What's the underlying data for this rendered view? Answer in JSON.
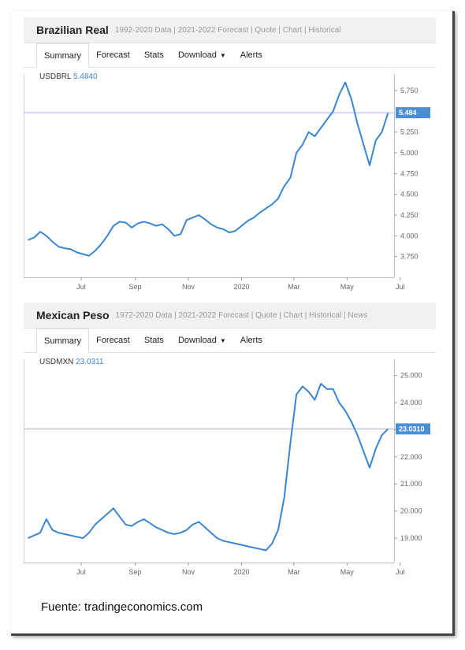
{
  "panels": [
    {
      "title": "Brazilian Real",
      "subtitle": "1992-2020 Data | 2021-2022 Forecast | Quote | Chart | Historical",
      "tabs": [
        "Summary",
        "Forecast",
        "Stats",
        "Download",
        "Alerts"
      ],
      "symbol_code": "USDBRL",
      "symbol_value": "5.4840",
      "current_label": "5.484"
    },
    {
      "title": "Mexican Peso",
      "subtitle": "1972-2020 Data | 2021-2022 Forecast | Quote | Chart | Historical | News",
      "tabs": [
        "Summary",
        "Forecast",
        "Stats",
        "Download",
        "Alerts"
      ],
      "symbol_code": "USDMXN",
      "symbol_value": "23.0311",
      "current_label": "23.0310"
    }
  ],
  "source": "Fuente: tradingeconomics.com",
  "colors": {
    "line": "#3a86d0",
    "ref_line": "#b8b6ee",
    "price_badge": "#4a8fd6"
  },
  "chart_data": [
    {
      "type": "line",
      "title": "",
      "series": [
        {
          "name": "USDBRL"
        }
      ],
      "x_ticks": [
        "Jul",
        "Sep",
        "Nov",
        "2020",
        "Mar",
        "May",
        "Jul"
      ],
      "y_ticks": [
        "3.750",
        "4.000",
        "4.250",
        "4.500",
        "4.750",
        "5.000",
        "5.250",
        "5.750"
      ],
      "ylim": [
        3.5,
        5.95
      ],
      "current": 5.484,
      "x": [
        "2019-05-15",
        "2019-05-22",
        "2019-05-29",
        "2019-06-05",
        "2019-06-12",
        "2019-06-19",
        "2019-06-26",
        "2019-07-03",
        "2019-07-10",
        "2019-07-17",
        "2019-07-24",
        "2019-07-31",
        "2019-08-07",
        "2019-08-14",
        "2019-08-21",
        "2019-08-28",
        "2019-09-04",
        "2019-09-11",
        "2019-09-18",
        "2019-09-25",
        "2019-10-02",
        "2019-10-09",
        "2019-10-16",
        "2019-10-23",
        "2019-10-30",
        "2019-11-06",
        "2019-11-13",
        "2019-11-20",
        "2019-11-27",
        "2019-12-04",
        "2019-12-11",
        "2019-12-18",
        "2019-12-25",
        "2020-01-01",
        "2020-01-08",
        "2020-01-15",
        "2020-01-22",
        "2020-01-29",
        "2020-02-05",
        "2020-02-12",
        "2020-02-19",
        "2020-02-26",
        "2020-03-04",
        "2020-03-11",
        "2020-03-18",
        "2020-03-25",
        "2020-04-01",
        "2020-04-08",
        "2020-04-15",
        "2020-04-22",
        "2020-04-29",
        "2020-05-06",
        "2020-05-13",
        "2020-05-20",
        "2020-05-27",
        "2020-06-03",
        "2020-06-10",
        "2020-06-17",
        "2020-06-24",
        "2020-07-01"
      ],
      "values": [
        3.95,
        3.98,
        4.05,
        4.0,
        3.93,
        3.87,
        3.85,
        3.84,
        3.8,
        3.78,
        3.76,
        3.82,
        3.9,
        4.0,
        4.12,
        4.17,
        4.16,
        4.1,
        4.15,
        4.17,
        4.15,
        4.12,
        4.14,
        4.08,
        4.0,
        4.02,
        4.19,
        4.22,
        4.25,
        4.2,
        4.14,
        4.1,
        4.08,
        4.04,
        4.06,
        4.12,
        4.18,
        4.22,
        4.28,
        4.33,
        4.38,
        4.45,
        4.6,
        4.7,
        5.0,
        5.1,
        5.25,
        5.2,
        5.3,
        5.4,
        5.5,
        5.7,
        5.85,
        5.65,
        5.35,
        5.1,
        4.85,
        5.15,
        5.25,
        5.48
      ]
    },
    {
      "type": "line",
      "title": "",
      "series": [
        {
          "name": "USDMXN"
        }
      ],
      "x_ticks": [
        "Jul",
        "Sep",
        "Nov",
        "2020",
        "Mar",
        "May",
        "Jul"
      ],
      "y_ticks": [
        "19.000",
        "20.000",
        "21.000",
        "22.000",
        "23.000",
        "24.000",
        "25.000"
      ],
      "ylim": [
        18.1,
        25.6
      ],
      "current": 23.031,
      "x": [
        "2019-05-15",
        "2019-05-22",
        "2019-05-29",
        "2019-06-05",
        "2019-06-12",
        "2019-06-19",
        "2019-06-26",
        "2019-07-03",
        "2019-07-10",
        "2019-07-17",
        "2019-07-24",
        "2019-07-31",
        "2019-08-07",
        "2019-08-14",
        "2019-08-21",
        "2019-08-28",
        "2019-09-04",
        "2019-09-11",
        "2019-09-18",
        "2019-09-25",
        "2019-10-02",
        "2019-10-09",
        "2019-10-16",
        "2019-10-23",
        "2019-10-30",
        "2019-11-06",
        "2019-11-13",
        "2019-11-20",
        "2019-11-27",
        "2019-12-04",
        "2019-12-11",
        "2019-12-18",
        "2019-12-25",
        "2020-01-01",
        "2020-01-08",
        "2020-01-15",
        "2020-01-22",
        "2020-01-29",
        "2020-02-05",
        "2020-02-12",
        "2020-02-19",
        "2020-02-26",
        "2020-03-04",
        "2020-03-11",
        "2020-03-18",
        "2020-03-25",
        "2020-04-01",
        "2020-04-08",
        "2020-04-15",
        "2020-04-22",
        "2020-04-29",
        "2020-05-06",
        "2020-05-13",
        "2020-05-20",
        "2020-05-27",
        "2020-06-03",
        "2020-06-10",
        "2020-06-17",
        "2020-06-24",
        "2020-07-01"
      ],
      "values": [
        19.0,
        19.1,
        19.2,
        19.7,
        19.3,
        19.2,
        19.15,
        19.1,
        19.05,
        19.0,
        19.2,
        19.5,
        19.7,
        19.9,
        20.1,
        19.8,
        19.5,
        19.45,
        19.6,
        19.7,
        19.55,
        19.4,
        19.3,
        19.2,
        19.15,
        19.2,
        19.3,
        19.5,
        19.6,
        19.4,
        19.2,
        19.0,
        18.9,
        18.85,
        18.8,
        18.75,
        18.7,
        18.65,
        18.6,
        18.55,
        18.8,
        19.3,
        20.5,
        22.5,
        24.3,
        24.6,
        24.4,
        24.1,
        24.7,
        24.5,
        24.5,
        24.0,
        23.7,
        23.3,
        22.8,
        22.2,
        21.6,
        22.3,
        22.8,
        23.03
      ]
    }
  ]
}
